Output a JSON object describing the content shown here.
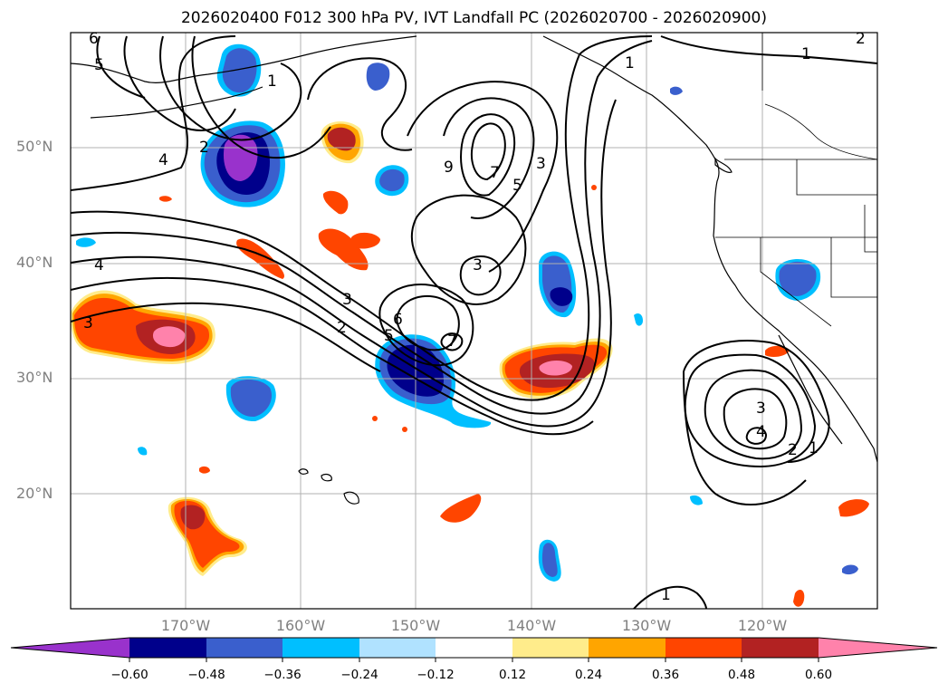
{
  "title": "2026020400 F012 300 hPa PV, IVT Landfall PC (2026020700 - 2026020900)",
  "latitude_labels": [
    "50°N",
    "40°N",
    "30°N",
    "20°N"
  ],
  "longitude_labels": [
    "170°W",
    "160°W",
    "150°W",
    "140°W",
    "130°W",
    "120°W"
  ],
  "colorbar": {
    "ticks": [
      "−0.60",
      "−0.48",
      "−0.36",
      "−0.24",
      "−0.12",
      "0.12",
      "0.24",
      "0.36",
      "0.48",
      "0.60"
    ],
    "colors": [
      "#9932CC",
      "#00008B",
      "#3A5FCD",
      "#00BFFF",
      "#B0E2FF",
      "#FFFFFF",
      "#FFEC8B",
      "#FFA500",
      "#FF4500",
      "#B22222",
      "#FF82AB"
    ]
  },
  "contour_labels": [
    "6",
    "5",
    "4",
    "3",
    "2",
    "1",
    "1",
    "2",
    "1",
    "9",
    "7",
    "5",
    "3",
    "4",
    "3",
    "2",
    "5",
    "6",
    "7",
    "3",
    "2",
    "4",
    "3",
    "1",
    "1"
  ],
  "shading_colors": {
    "purple": "#9932CC",
    "navy": "#00008B",
    "royal_blue": "#3A5FCD",
    "sky_blue": "#00BFFF",
    "light_blue": "#B0E2FF",
    "yellow": "#FFEC8B",
    "orange": "#FFA500",
    "red_orange": "#FF4500",
    "firebrick": "#B22222",
    "pink": "#FF82AB"
  }
}
